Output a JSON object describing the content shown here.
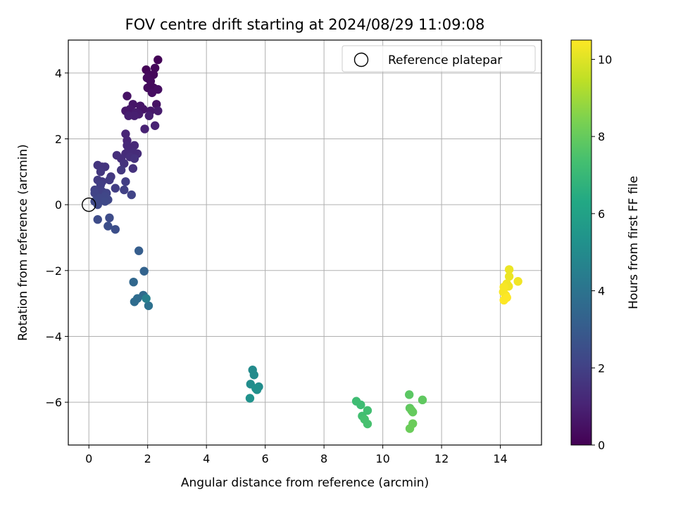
{
  "chart_data": {
    "type": "scatter",
    "title": "FOV centre drift starting at 2024/08/29 11:09:08",
    "xlabel": "Angular distance from reference (arcmin)",
    "ylabel": "Rotation from reference (arcmin)",
    "xlim": [
      -0.7,
      15.4
    ],
    "ylim": [
      -7.3,
      5.0
    ],
    "xticks": [
      0,
      2,
      4,
      6,
      8,
      10,
      12,
      14
    ],
    "yticks": [
      -6,
      -4,
      -2,
      0,
      2,
      4
    ],
    "xtick_labels": [
      "0",
      "2",
      "4",
      "6",
      "8",
      "10",
      "12",
      "14"
    ],
    "ytick_labels": [
      "−6",
      "−4",
      "−2",
      "0",
      "2",
      "4"
    ],
    "grid": true,
    "legend": {
      "position": "top-right",
      "entries": [
        "Reference platepar"
      ]
    },
    "reference_point": {
      "x": 0,
      "y": 0,
      "name": "Reference platepar"
    },
    "colorbar": {
      "label": "Hours from first FF file",
      "range": [
        0,
        10.5
      ],
      "ticks": [
        0,
        2,
        4,
        6,
        8,
        10
      ],
      "tick_labels": [
        "0",
        "2",
        "4",
        "6",
        "8",
        "10"
      ],
      "colormap": "viridis"
    },
    "points": [
      {
        "x": 1.95,
        "y": 4.1,
        "c": 0.1
      },
      {
        "x": 2.35,
        "y": 4.4,
        "c": 0.1
      },
      {
        "x": 2.25,
        "y": 4.15,
        "c": 0.2
      },
      {
        "x": 2.05,
        "y": 3.95,
        "c": 0.2
      },
      {
        "x": 2.2,
        "y": 3.95,
        "c": 0.2
      },
      {
        "x": 1.98,
        "y": 3.85,
        "c": 0.3
      },
      {
        "x": 2.1,
        "y": 3.75,
        "c": 0.3
      },
      {
        "x": 2.0,
        "y": 3.55,
        "c": 0.3
      },
      {
        "x": 2.2,
        "y": 3.55,
        "c": 0.3
      },
      {
        "x": 2.35,
        "y": 3.5,
        "c": 0.4
      },
      {
        "x": 2.15,
        "y": 3.4,
        "c": 0.4
      },
      {
        "x": 1.3,
        "y": 3.3,
        "c": 0.5
      },
      {
        "x": 2.3,
        "y": 3.05,
        "c": 0.5
      },
      {
        "x": 1.5,
        "y": 3.05,
        "c": 0.6
      },
      {
        "x": 1.75,
        "y": 3.0,
        "c": 0.6
      },
      {
        "x": 1.85,
        "y": 2.9,
        "c": 0.6
      },
      {
        "x": 1.4,
        "y": 2.9,
        "c": 0.7
      },
      {
        "x": 1.25,
        "y": 2.85,
        "c": 0.7
      },
      {
        "x": 2.1,
        "y": 2.85,
        "c": 0.7
      },
      {
        "x": 2.35,
        "y": 2.85,
        "c": 0.8
      },
      {
        "x": 1.6,
        "y": 2.8,
        "c": 0.8
      },
      {
        "x": 1.7,
        "y": 2.75,
        "c": 0.8
      },
      {
        "x": 2.05,
        "y": 2.7,
        "c": 0.9
      },
      {
        "x": 1.55,
        "y": 2.7,
        "c": 0.9
      },
      {
        "x": 1.35,
        "y": 2.7,
        "c": 0.9
      },
      {
        "x": 2.25,
        "y": 2.4,
        "c": 1.0
      },
      {
        "x": 1.9,
        "y": 2.3,
        "c": 1.0
      },
      {
        "x": 1.25,
        "y": 2.15,
        "c": 1.1
      },
      {
        "x": 1.3,
        "y": 1.95,
        "c": 1.1
      },
      {
        "x": 1.3,
        "y": 1.8,
        "c": 1.2
      },
      {
        "x": 1.55,
        "y": 1.8,
        "c": 1.2
      },
      {
        "x": 1.35,
        "y": 1.7,
        "c": 1.2
      },
      {
        "x": 1.5,
        "y": 1.6,
        "c": 1.3
      },
      {
        "x": 1.25,
        "y": 1.55,
        "c": 1.3
      },
      {
        "x": 1.65,
        "y": 1.55,
        "c": 1.3
      },
      {
        "x": 0.95,
        "y": 1.5,
        "c": 1.4
      },
      {
        "x": 1.4,
        "y": 1.45,
        "c": 1.4
      },
      {
        "x": 1.1,
        "y": 1.4,
        "c": 1.4
      },
      {
        "x": 1.55,
        "y": 1.4,
        "c": 1.5
      },
      {
        "x": 1.2,
        "y": 1.25,
        "c": 1.5
      },
      {
        "x": 1.5,
        "y": 1.1,
        "c": 1.5
      },
      {
        "x": 0.3,
        "y": 1.2,
        "c": 1.6
      },
      {
        "x": 0.55,
        "y": 1.15,
        "c": 1.6
      },
      {
        "x": 0.45,
        "y": 1.15,
        "c": 1.6
      },
      {
        "x": 1.1,
        "y": 1.05,
        "c": 1.7
      },
      {
        "x": 0.4,
        "y": 1.0,
        "c": 1.7
      },
      {
        "x": 0.75,
        "y": 0.85,
        "c": 1.7
      },
      {
        "x": 0.7,
        "y": 0.75,
        "c": 1.8
      },
      {
        "x": 0.3,
        "y": 0.75,
        "c": 1.8
      },
      {
        "x": 0.45,
        "y": 0.7,
        "c": 1.8
      },
      {
        "x": 1.25,
        "y": 0.7,
        "c": 1.9
      },
      {
        "x": 0.4,
        "y": 0.6,
        "c": 1.9
      },
      {
        "x": 0.9,
        "y": 0.5,
        "c": 1.9
      },
      {
        "x": 0.2,
        "y": 0.45,
        "c": 2.0
      },
      {
        "x": 1.2,
        "y": 0.45,
        "c": 2.0
      },
      {
        "x": 0.45,
        "y": 0.4,
        "c": 2.0
      },
      {
        "x": 0.6,
        "y": 0.35,
        "c": 2.1
      },
      {
        "x": 0.2,
        "y": 0.35,
        "c": 2.1
      },
      {
        "x": 1.45,
        "y": 0.3,
        "c": 2.1
      },
      {
        "x": 0.55,
        "y": 0.25,
        "c": 2.2
      },
      {
        "x": 0.35,
        "y": 0.2,
        "c": 2.2
      },
      {
        "x": 0.65,
        "y": 0.15,
        "c": 2.2
      },
      {
        "x": 0.55,
        "y": 0.1,
        "c": 2.3
      },
      {
        "x": 0.2,
        "y": 0.1,
        "c": 2.3
      },
      {
        "x": 0.3,
        "y": 0.0,
        "c": 2.3
      },
      {
        "x": 0.3,
        "y": -0.45,
        "c": 2.4
      },
      {
        "x": 0.7,
        "y": -0.4,
        "c": 2.4
      },
      {
        "x": 0.65,
        "y": -0.65,
        "c": 2.5
      },
      {
        "x": 0.9,
        "y": -0.75,
        "c": 2.5
      },
      {
        "x": 1.7,
        "y": -1.4,
        "c": 3.1
      },
      {
        "x": 1.88,
        "y": -2.02,
        "c": 3.3
      },
      {
        "x": 1.52,
        "y": -2.35,
        "c": 3.5
      },
      {
        "x": 1.85,
        "y": -2.75,
        "c": 3.6
      },
      {
        "x": 1.65,
        "y": -2.85,
        "c": 3.7
      },
      {
        "x": 1.55,
        "y": -2.95,
        "c": 3.7
      },
      {
        "x": 2.03,
        "y": -3.07,
        "c": 3.9
      },
      {
        "x": 1.95,
        "y": -2.85,
        "c": 4.5
      },
      {
        "x": 5.57,
        "y": -5.02,
        "c": 5.0
      },
      {
        "x": 5.62,
        "y": -5.17,
        "c": 5.0
      },
      {
        "x": 5.5,
        "y": -5.45,
        "c": 5.1
      },
      {
        "x": 5.78,
        "y": -5.53,
        "c": 5.1
      },
      {
        "x": 5.68,
        "y": -5.58,
        "c": 5.2
      },
      {
        "x": 5.72,
        "y": -5.62,
        "c": 5.2
      },
      {
        "x": 5.48,
        "y": -5.88,
        "c": 5.3
      },
      {
        "x": 9.1,
        "y": -5.97,
        "c": 7.2
      },
      {
        "x": 9.25,
        "y": -6.08,
        "c": 7.2
      },
      {
        "x": 9.48,
        "y": -6.25,
        "c": 7.3
      },
      {
        "x": 9.3,
        "y": -6.42,
        "c": 7.3
      },
      {
        "x": 9.38,
        "y": -6.52,
        "c": 7.4
      },
      {
        "x": 9.48,
        "y": -6.66,
        "c": 7.4
      },
      {
        "x": 10.9,
        "y": -5.77,
        "c": 7.8
      },
      {
        "x": 11.35,
        "y": -5.93,
        "c": 7.9
      },
      {
        "x": 10.92,
        "y": -6.18,
        "c": 7.9
      },
      {
        "x": 10.98,
        "y": -6.25,
        "c": 8.0
      },
      {
        "x": 11.02,
        "y": -6.3,
        "c": 8.0
      },
      {
        "x": 11.02,
        "y": -6.65,
        "c": 8.1
      },
      {
        "x": 10.92,
        "y": -6.8,
        "c": 8.1
      },
      {
        "x": 14.3,
        "y": -1.97,
        "c": 10.2
      },
      {
        "x": 14.3,
        "y": -2.18,
        "c": 10.2
      },
      {
        "x": 14.6,
        "y": -2.33,
        "c": 10.3
      },
      {
        "x": 14.22,
        "y": -2.4,
        "c": 10.3
      },
      {
        "x": 14.28,
        "y": -2.48,
        "c": 10.3
      },
      {
        "x": 14.12,
        "y": -2.5,
        "c": 10.4
      },
      {
        "x": 14.1,
        "y": -2.65,
        "c": 10.4
      },
      {
        "x": 14.18,
        "y": -2.75,
        "c": 10.4
      },
      {
        "x": 14.22,
        "y": -2.82,
        "c": 10.5
      },
      {
        "x": 14.12,
        "y": -2.9,
        "c": 10.5
      }
    ]
  }
}
